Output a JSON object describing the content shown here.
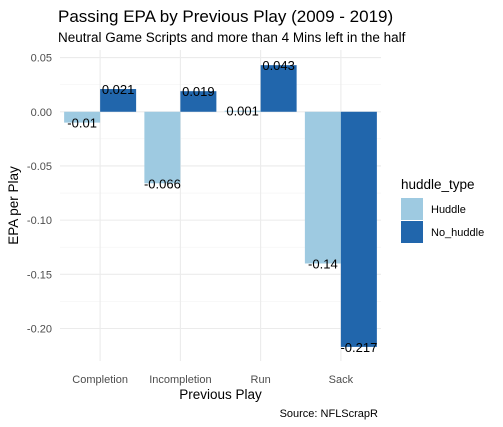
{
  "chart_data": {
    "type": "bar",
    "title": "Passing EPA by Previous Play (2009 - 2019)",
    "subtitle": "Neutral Game Scripts and more than 4 Mins left in the half",
    "xlabel": "Previous Play",
    "ylabel": "EPA per Play",
    "caption": "Source: NFLScrapR",
    "categories": [
      "Completion",
      "Incompletion",
      "Run",
      "Sack"
    ],
    "series": [
      {
        "name": "Huddle",
        "values": [
          -0.01,
          -0.066,
          0.001,
          -0.14
        ],
        "labels": [
          "-0.01",
          "-0.066",
          "0.001",
          "-0.14"
        ],
        "color": "#9ecae1"
      },
      {
        "name": "No_huddle",
        "values": [
          0.021,
          0.019,
          0.043,
          -0.217
        ],
        "labels": [
          "0.021",
          "0.019",
          "0.043",
          "-0.217"
        ],
        "color": "#2166ac"
      }
    ],
    "ylim": [
      -0.23,
      0.057
    ],
    "yticks": [
      0.05,
      0.0,
      -0.05,
      -0.1,
      -0.15,
      -0.2
    ],
    "ytick_labels": [
      "0.05",
      "0.00",
      "-0.05",
      "-0.10",
      "-0.15",
      "-0.20"
    ],
    "legend": {
      "title": "huddle_type",
      "position": "right"
    },
    "grid": true
  }
}
